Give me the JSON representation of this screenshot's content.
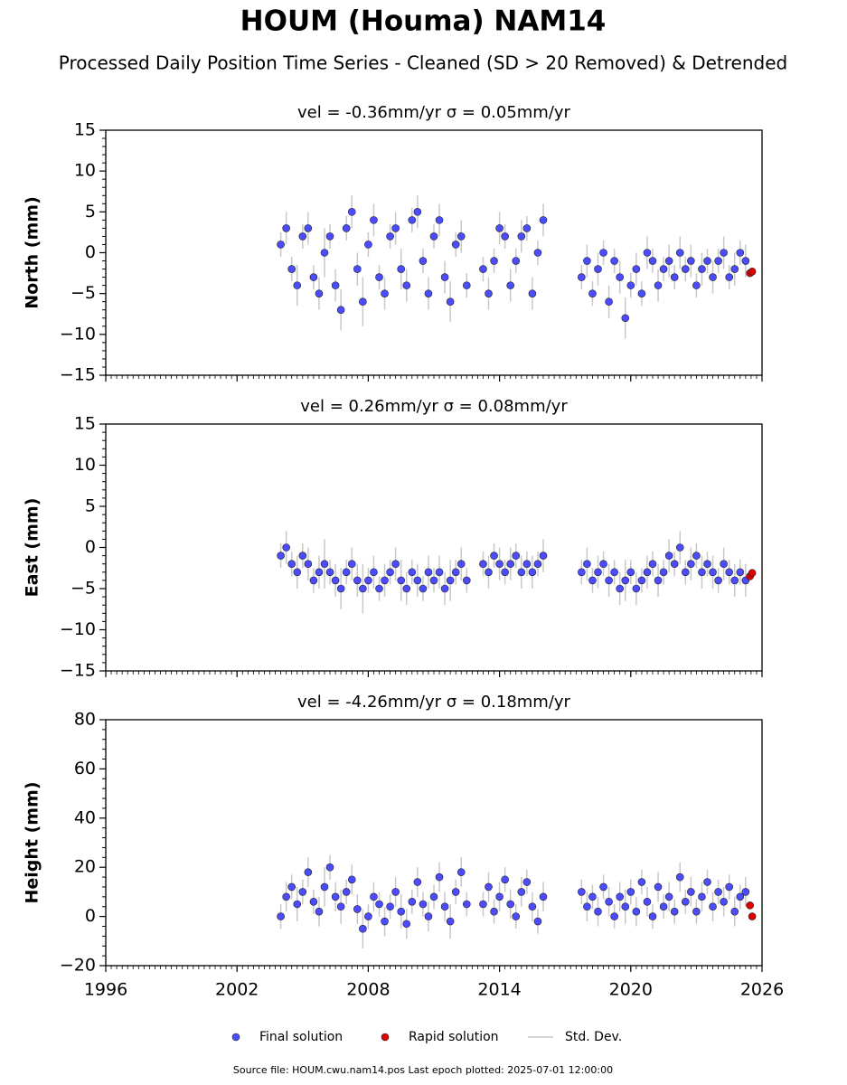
{
  "header": {
    "title": "HOUM (Houma) NAM14",
    "subtitle": "Processed Daily Position Time Series - Cleaned (SD > 20 Removed) & Detrended"
  },
  "footer": "Source file: HOUM.cwu.nam14.pos  Last epoch plotted: 2025-07-01 12:00:00",
  "chart_data": [
    {
      "type": "scatter",
      "title": "vel = -0.36mm/yr   σ = 0.05mm/yr",
      "ylabel": "North (mm)",
      "error_label": "Std. Dev.",
      "error_color": "#c8c8c8",
      "xlim": [
        1996,
        2026
      ],
      "ylim": [
        -15,
        15
      ],
      "yticks": [
        {
          "value": -15,
          "label": "−15"
        },
        {
          "value": -10,
          "label": "−10"
        },
        {
          "value": -5,
          "label": "−5"
        },
        0,
        5,
        10,
        15
      ],
      "series": [
        {
          "name": "Final solution",
          "color": "#4b4bff",
          "x": [
            2004.0,
            2004.25,
            2004.5,
            2004.75,
            2005.0,
            2005.25,
            2005.5,
            2005.75,
            2006.0,
            2006.25,
            2006.5,
            2006.75,
            2007.0,
            2007.25,
            2007.5,
            2007.75,
            2008.0,
            2008.25,
            2008.5,
            2008.75,
            2009.0,
            2009.25,
            2009.5,
            2009.75,
            2010.0,
            2010.25,
            2010.5,
            2010.75,
            2011.0,
            2011.25,
            2011.5,
            2011.75,
            2012.0,
            2012.25,
            2012.5,
            2013.25,
            2013.5,
            2013.75,
            2014.0,
            2014.25,
            2014.5,
            2014.75,
            2015.0,
            2015.25,
            2015.5,
            2015.75,
            2016.0,
            2017.75,
            2018.0,
            2018.25,
            2018.5,
            2018.75,
            2019.0,
            2019.25,
            2019.5,
            2019.75,
            2020.0,
            2020.25,
            2020.5,
            2020.75,
            2021.0,
            2021.25,
            2021.5,
            2021.75,
            2022.0,
            2022.25,
            2022.5,
            2022.75,
            2023.0,
            2023.25,
            2023.5,
            2023.75,
            2024.0,
            2024.25,
            2024.5,
            2024.75,
            2025.0,
            2025.25
          ],
          "values": [
            1,
            3,
            -2,
            -4,
            2,
            3,
            -3,
            -5,
            0,
            2,
            -4,
            -7,
            3,
            5,
            -2,
            -6,
            1,
            4,
            -3,
            -5,
            2,
            3,
            -2,
            -4,
            4,
            5,
            -1,
            -5,
            2,
            4,
            -3,
            -6,
            1,
            2,
            -4,
            -2,
            -5,
            -1,
            3,
            2,
            -4,
            -1,
            2,
            3,
            -5,
            0,
            4,
            -3,
            -1,
            -5,
            -2,
            0,
            -6,
            -1,
            -3,
            -8,
            -4,
            -2,
            -5,
            0,
            -1,
            -4,
            -2,
            -1,
            -3,
            0,
            -2,
            -1,
            -4,
            -2,
            -1,
            -3,
            -1,
            0,
            -3,
            -2,
            0,
            -1
          ],
          "errors": [
            1.5,
            2,
            1.5,
            2.5,
            1.5,
            2,
            1.5,
            2,
            3,
            1.5,
            2,
            2.5,
            1.5,
            2,
            2,
            3,
            1.5,
            2,
            1.5,
            2,
            1.5,
            2,
            2.5,
            2,
            1.5,
            2,
            1.5,
            2,
            1.5,
            2,
            2,
            2.5,
            1.5,
            2,
            1.5,
            1.5,
            2,
            1.5,
            2,
            1.5,
            2,
            1.5,
            2,
            1.5,
            2,
            1.5,
            2,
            1.5,
            2,
            1.5,
            2,
            1.5,
            2,
            1.5,
            2,
            2.5,
            1.5,
            2,
            1.5,
            2,
            1.5,
            2,
            1.5,
            2,
            1.5,
            2,
            1.5,
            2,
            1.5,
            2,
            1.5,
            2,
            1.5,
            2,
            1.5,
            2,
            1.5,
            2
          ]
        },
        {
          "name": "Rapid solution",
          "color": "#e00000",
          "x": [
            2025.45,
            2025.55
          ],
          "values": [
            -2.5,
            -2.3
          ]
        }
      ]
    },
    {
      "type": "scatter",
      "title": "vel = 0.26mm/yr   σ = 0.08mm/yr",
      "ylabel": "East (mm)",
      "error_color": "#c8c8c8",
      "xlim": [
        1996,
        2026
      ],
      "ylim": [
        -15,
        15
      ],
      "yticks": [
        {
          "value": -15,
          "label": "−15"
        },
        {
          "value": -10,
          "label": "−10"
        },
        {
          "value": -5,
          "label": "−5"
        },
        0,
        5,
        10,
        15
      ],
      "series": [
        {
          "name": "Final solution",
          "color": "#4b4bff",
          "x": [
            2004.0,
            2004.25,
            2004.5,
            2004.75,
            2005.0,
            2005.25,
            2005.5,
            2005.75,
            2006.0,
            2006.25,
            2006.5,
            2006.75,
            2007.0,
            2007.25,
            2007.5,
            2007.75,
            2008.0,
            2008.25,
            2008.5,
            2008.75,
            2009.0,
            2009.25,
            2009.5,
            2009.75,
            2010.0,
            2010.25,
            2010.5,
            2010.75,
            2011.0,
            2011.25,
            2011.5,
            2011.75,
            2012.0,
            2012.25,
            2012.5,
            2013.25,
            2013.5,
            2013.75,
            2014.0,
            2014.25,
            2014.5,
            2014.75,
            2015.0,
            2015.25,
            2015.5,
            2015.75,
            2016.0,
            2017.75,
            2018.0,
            2018.25,
            2018.5,
            2018.75,
            2019.0,
            2019.25,
            2019.5,
            2019.75,
            2020.0,
            2020.25,
            2020.5,
            2020.75,
            2021.0,
            2021.25,
            2021.5,
            2021.75,
            2022.0,
            2022.25,
            2022.5,
            2022.75,
            2023.0,
            2023.25,
            2023.5,
            2023.75,
            2024.0,
            2024.25,
            2024.5,
            2024.75,
            2025.0,
            2025.25
          ],
          "values": [
            -1,
            0,
            -2,
            -3,
            -1,
            -2,
            -4,
            -3,
            -2,
            -3,
            -4,
            -5,
            -3,
            -2,
            -4,
            -5,
            -4,
            -3,
            -5,
            -4,
            -3,
            -2,
            -4,
            -5,
            -3,
            -4,
            -5,
            -3,
            -4,
            -3,
            -5,
            -4,
            -3,
            -2,
            -4,
            -2,
            -3,
            -1,
            -2,
            -3,
            -2,
            -1,
            -3,
            -2,
            -3,
            -2,
            -1,
            -3,
            -2,
            -4,
            -3,
            -2,
            -4,
            -3,
            -5,
            -4,
            -3,
            -5,
            -4,
            -3,
            -2,
            -4,
            -3,
            -1,
            -2,
            0,
            -3,
            -2,
            -1,
            -3,
            -2,
            -3,
            -4,
            -2,
            -3,
            -4,
            -3,
            -4
          ],
          "errors": [
            1.5,
            2,
            1.5,
            2,
            1.5,
            2,
            1.5,
            2,
            3,
            1.5,
            2,
            2.5,
            1.5,
            2,
            2,
            3,
            1.5,
            2,
            1.5,
            2,
            1.5,
            2,
            2.5,
            2,
            1.5,
            2,
            1.5,
            2,
            1.5,
            2,
            2,
            2.5,
            1.5,
            2,
            1.5,
            1.5,
            2,
            1.5,
            2,
            1.5,
            2,
            1.5,
            2,
            1.5,
            2,
            1.5,
            2,
            1.5,
            2,
            1.5,
            2,
            1.5,
            2,
            1.5,
            2,
            2.5,
            1.5,
            2,
            1.5,
            2,
            1.5,
            2,
            1.5,
            2,
            1.5,
            2,
            1.5,
            2,
            1.5,
            2,
            1.5,
            2,
            1.5,
            2,
            1.5,
            2,
            1.5,
            2
          ]
        },
        {
          "name": "Rapid solution",
          "color": "#e00000",
          "x": [
            2025.45,
            2025.55
          ],
          "values": [
            -3.5,
            -3.1
          ]
        }
      ]
    },
    {
      "type": "scatter",
      "title": "vel = -4.26mm/yr   σ = 0.18mm/yr",
      "ylabel": "Height (mm)",
      "error_color": "#c8c8c8",
      "xlim": [
        1996,
        2026
      ],
      "ylim": [
        -20,
        80
      ],
      "yticks": [
        {
          "value": -20,
          "label": "−20"
        },
        0,
        20,
        40,
        60,
        80
      ],
      "xticks": [
        1996,
        2002,
        2008,
        2014,
        2020,
        2026
      ],
      "series": [
        {
          "name": "Final solution",
          "color": "#4b4bff",
          "x": [
            2004.0,
            2004.25,
            2004.5,
            2004.75,
            2005.0,
            2005.25,
            2005.5,
            2005.75,
            2006.0,
            2006.25,
            2006.5,
            2006.75,
            2007.0,
            2007.25,
            2007.5,
            2007.75,
            2008.0,
            2008.25,
            2008.5,
            2008.75,
            2009.0,
            2009.25,
            2009.5,
            2009.75,
            2010.0,
            2010.25,
            2010.5,
            2010.75,
            2011.0,
            2011.25,
            2011.5,
            2011.75,
            2012.0,
            2012.25,
            2012.5,
            2013.25,
            2013.5,
            2013.75,
            2014.0,
            2014.25,
            2014.5,
            2014.75,
            2015.0,
            2015.25,
            2015.5,
            2015.75,
            2016.0,
            2017.75,
            2018.0,
            2018.25,
            2018.5,
            2018.75,
            2019.0,
            2019.25,
            2019.5,
            2019.75,
            2020.0,
            2020.25,
            2020.5,
            2020.75,
            2021.0,
            2021.25,
            2021.5,
            2021.75,
            2022.0,
            2022.25,
            2022.5,
            2022.75,
            2023.0,
            2023.25,
            2023.5,
            2023.75,
            2024.0,
            2024.25,
            2024.5,
            2024.75,
            2025.0,
            2025.25
          ],
          "values": [
            0,
            8,
            12,
            5,
            10,
            18,
            6,
            2,
            12,
            20,
            8,
            4,
            10,
            15,
            3,
            -5,
            0,
            8,
            5,
            -2,
            4,
            10,
            2,
            -3,
            6,
            14,
            5,
            0,
            8,
            16,
            4,
            -2,
            10,
            18,
            5,
            5,
            12,
            2,
            8,
            15,
            5,
            0,
            10,
            14,
            4,
            -2,
            8,
            10,
            4,
            8,
            2,
            12,
            6,
            0,
            8,
            4,
            10,
            2,
            14,
            6,
            0,
            12,
            4,
            8,
            2,
            16,
            6,
            10,
            2,
            8,
            14,
            4,
            10,
            6,
            12,
            2,
            8,
            10
          ],
          "errors": [
            5,
            6,
            5,
            7,
            5,
            6,
            5,
            6,
            8,
            5,
            6,
            7,
            5,
            6,
            6,
            8,
            5,
            6,
            5,
            6,
            5,
            6,
            7,
            6,
            5,
            6,
            5,
            6,
            5,
            6,
            6,
            7,
            5,
            6,
            5,
            5,
            6,
            5,
            6,
            5,
            6,
            5,
            6,
            5,
            6,
            5,
            6,
            5,
            6,
            5,
            6,
            5,
            6,
            5,
            6,
            7,
            5,
            6,
            5,
            6,
            5,
            6,
            5,
            6,
            5,
            6,
            5,
            6,
            5,
            6,
            5,
            6,
            5,
            6,
            5,
            6,
            5,
            6
          ]
        },
        {
          "name": "Rapid solution",
          "color": "#e00000",
          "x": [
            2025.45,
            2025.55
          ],
          "values": [
            4.5,
            0
          ]
        }
      ]
    }
  ]
}
